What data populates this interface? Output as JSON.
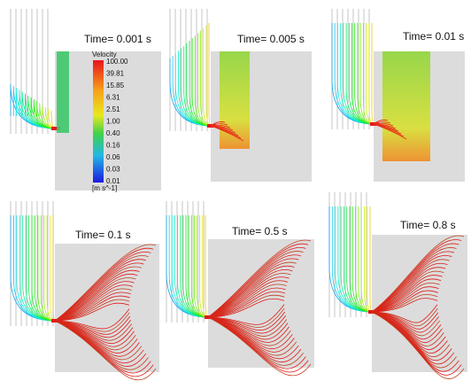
{
  "panels": [
    {
      "time": "Time= 0.001 s"
    },
    {
      "time": "Time= 0.005 s"
    },
    {
      "time": "Time= 0.01 s"
    },
    {
      "time": "Time= 0.1 s"
    },
    {
      "time": "Time= 0.5 s"
    },
    {
      "time": "Time= 0.8 s"
    }
  ],
  "legend": {
    "title": "Velocity",
    "ticks": [
      "100.00",
      "39.81",
      "15.85",
      "6.31",
      "2.51",
      "1.00",
      "0.40",
      "0.16",
      "0.06",
      "0.03",
      "0.01"
    ],
    "unit": "[m s^-1]"
  }
}
